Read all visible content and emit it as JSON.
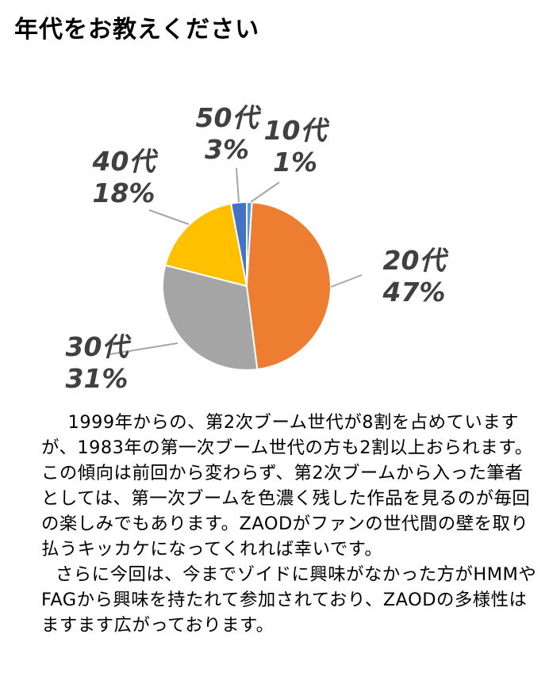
{
  "page": {
    "title": "年代をお教えください"
  },
  "chart_data": {
    "type": "pie",
    "categories": [
      "10代",
      "20代",
      "30代",
      "40代",
      "50代"
    ],
    "values": [
      1,
      47,
      31,
      18,
      3
    ],
    "percent_labels": [
      "1%",
      "47%",
      "31%",
      "18%",
      "3%"
    ],
    "colors": [
      "#5b9bd5",
      "#ed7d31",
      "#a5a5a5",
      "#ffc000",
      "#4472c4"
    ],
    "title": "",
    "legend": "none",
    "start_angle_deg": 0,
    "direction": "clockwise"
  },
  "body": {
    "paragraph1": "1999年からの、第2次ブーム世代が8割を占めていますが、1983年の第一次ブーム世代の方も2割以上おられます。この傾向は前回から変わらず、第2次ブームから入った筆者としては、第一次ブームを色濃く残した作品を見るのが毎回の楽しみでもあります。ZAODがファンの世代間の壁を取り払うキッカケになってくれれば幸いです。",
    "paragraph2": "さらに今回は、今までゾイドに興味がなかった方がHMMやFAGから興味を持たれて参加されており、ZAODの多様性はますます広がっております。"
  }
}
